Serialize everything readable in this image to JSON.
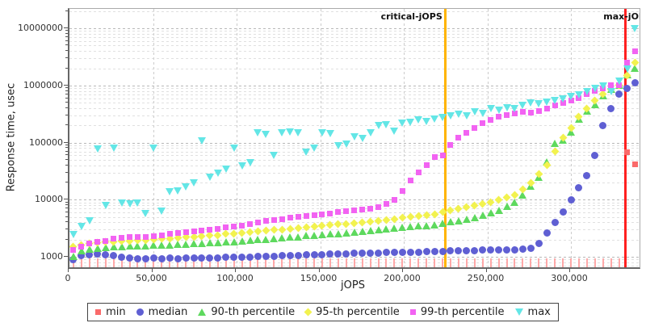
{
  "chart_data": {
    "type": "scatter",
    "title": "",
    "xlabel": "jOPS",
    "ylabel": "Response time, usec",
    "y_axis": {
      "scale": "log",
      "min": 650,
      "max": 22000000,
      "ticks": [
        {
          "value": 1000,
          "label": "1000"
        },
        {
          "value": 10000,
          "label": "10000"
        },
        {
          "value": 100000,
          "label": "100000"
        },
        {
          "value": 1000000,
          "label": "1000000"
        },
        {
          "value": 10000000,
          "label": "10000000"
        }
      ]
    },
    "x_axis": {
      "min": 0,
      "max": 341000,
      "ticks": [
        {
          "value": 0,
          "label": "0"
        },
        {
          "value": 50000,
          "label": "50,000"
        },
        {
          "value": 100000,
          "label": "100,000"
        },
        {
          "value": 150000,
          "label": "150,000"
        },
        {
          "value": 200000,
          "label": "200,000"
        },
        {
          "value": 250000,
          "label": "250,000"
        },
        {
          "value": 300000,
          "label": "300,000"
        }
      ]
    },
    "grid": true,
    "legend_position": "bottom",
    "x": [
      2400,
      7200,
      12000,
      16800,
      21600,
      26400,
      31200,
      36000,
      40800,
      45600,
      50400,
      55200,
      60000,
      64800,
      69600,
      74400,
      79200,
      84000,
      88800,
      93600,
      98400,
      103200,
      108000,
      112800,
      117600,
      122400,
      127200,
      132000,
      136800,
      141600,
      146400,
      151200,
      156000,
      160800,
      165600,
      170400,
      175200,
      180000,
      184800,
      189600,
      194400,
      199200,
      204000,
      208800,
      213600,
      218400,
      223200,
      228000,
      232800,
      237600,
      242400,
      247200,
      252000,
      256800,
      261600,
      266400,
      271200,
      276000,
      280800,
      285600,
      290400,
      295200,
      300000,
      304800,
      309600,
      314400,
      319200,
      324000,
      328800,
      333600,
      338400
    ],
    "series": [
      {
        "name": "min",
        "marker": "stick-square",
        "color": "#fa6a6a",
        "stick_color": "#ffa8a8",
        "values": [
          950,
          950,
          950,
          950,
          950,
          950,
          950,
          950,
          950,
          950,
          950,
          950,
          950,
          950,
          950,
          950,
          950,
          950,
          950,
          950,
          950,
          950,
          950,
          950,
          950,
          950,
          950,
          950,
          950,
          950,
          950,
          950,
          950,
          950,
          950,
          950,
          950,
          950,
          950,
          950,
          950,
          950,
          950,
          950,
          950,
          950,
          950,
          950,
          950,
          950,
          950,
          950,
          950,
          950,
          950,
          950,
          950,
          950,
          950,
          950,
          950,
          950,
          950,
          950,
          950,
          950,
          950,
          950,
          950,
          67000,
          42000
        ]
      },
      {
        "name": "median",
        "marker": "circle",
        "color": "#5f5fd3",
        "values": [
          900,
          1050,
          1100,
          1120,
          1080,
          1050,
          1000,
          960,
          930,
          930,
          940,
          930,
          940,
          930,
          940,
          950,
          940,
          950,
          960,
          970,
          980,
          990,
          1000,
          1010,
          1020,
          1030,
          1040,
          1050,
          1060,
          1070,
          1080,
          1100,
          1110,
          1120,
          1130,
          1140,
          1150,
          1160,
          1170,
          1180,
          1190,
          1200,
          1200,
          1210,
          1220,
          1230,
          1250,
          1260,
          1270,
          1280,
          1290,
          1300,
          1310,
          1320,
          1330,
          1340,
          1350,
          1400,
          1700,
          2600,
          4000,
          6000,
          10000,
          16000,
          26000,
          60000,
          200000,
          400000,
          700000,
          900000,
          1100000
        ]
      },
      {
        "name": "90-th percentile",
        "marker": "triangle-up",
        "color": "#5ed95e",
        "values": [
          1000,
          1250,
          1350,
          1400,
          1450,
          1480,
          1500,
          1520,
          1540,
          1550,
          1560,
          1580,
          1600,
          1620,
          1650,
          1680,
          1700,
          1720,
          1750,
          1780,
          1800,
          1850,
          1900,
          1950,
          2000,
          2050,
          2100,
          2150,
          2200,
          2300,
          2350,
          2400,
          2450,
          2500,
          2600,
          2650,
          2700,
          2800,
          2900,
          3000,
          3100,
          3200,
          3300,
          3400,
          3500,
          3600,
          3800,
          4000,
          4200,
          4500,
          4800,
          5200,
          5800,
          6500,
          7500,
          9000,
          12000,
          17000,
          24000,
          45000,
          95000,
          110000,
          150000,
          250000,
          350000,
          450000,
          650000,
          850000,
          1000000,
          1500000,
          2000000
        ]
      },
      {
        "name": "95-th percentile",
        "marker": "diamond",
        "color": "#f2f24f",
        "values": [
          1500,
          1600,
          1700,
          1750,
          1800,
          1850,
          1880,
          1900,
          1930,
          1950,
          2000,
          2050,
          2100,
          2150,
          2200,
          2250,
          2300,
          2350,
          2400,
          2500,
          2550,
          2600,
          2700,
          2750,
          2850,
          2950,
          3000,
          3100,
          3200,
          3300,
          3400,
          3500,
          3600,
          3700,
          3800,
          3900,
          4000,
          4100,
          4250,
          4400,
          4600,
          4800,
          5000,
          5200,
          5400,
          5500,
          6000,
          6500,
          7000,
          7500,
          8000,
          8500,
          9000,
          10000,
          11000,
          12000,
          15000,
          20000,
          28000,
          40000,
          70000,
          120000,
          180000,
          280000,
          400000,
          550000,
          700000,
          850000,
          1000000,
          1500000,
          2500000
        ]
      },
      {
        "name": "99-th percentile",
        "marker": "square",
        "color": "#f263f2",
        "values": [
          1300,
          1500,
          1700,
          1800,
          1900,
          2100,
          2150,
          2200,
          2250,
          2250,
          2300,
          2400,
          2500,
          2600,
          2700,
          2800,
          2900,
          3000,
          3100,
          3300,
          3400,
          3500,
          3700,
          4000,
          4200,
          4400,
          4600,
          4800,
          5000,
          5200,
          5400,
          5600,
          5800,
          6000,
          6200,
          6400,
          6700,
          7000,
          7500,
          8500,
          10000,
          14000,
          22000,
          30000,
          40000,
          55000,
          60000,
          90000,
          120000,
          150000,
          180000,
          220000,
          250000,
          280000,
          300000,
          320000,
          350000,
          330000,
          360000,
          400000,
          450000,
          500000,
          550000,
          600000,
          700000,
          800000,
          900000,
          1000000,
          1000000,
          2500000,
          4000000
        ]
      },
      {
        "name": "max",
        "marker": "triangle-down",
        "color": "#63e6e6",
        "values": [
          2500,
          3500,
          4300,
          78000,
          8000,
          80000,
          9000,
          8500,
          8800,
          5800,
          80000,
          6400,
          14000,
          14500,
          17000,
          20000,
          110000,
          25000,
          30000,
          35000,
          80000,
          40000,
          45000,
          150000,
          140000,
          60000,
          150000,
          155000,
          150000,
          70000,
          80000,
          150000,
          145000,
          90000,
          95000,
          130000,
          120000,
          150000,
          200000,
          210000,
          160000,
          220000,
          230000,
          250000,
          240000,
          260000,
          280000,
          300000,
          320000,
          300000,
          350000,
          330000,
          400000,
          380000,
          420000,
          400000,
          450000,
          500000,
          480000,
          520000,
          550000,
          600000,
          650000,
          700000,
          800000,
          900000,
          1000000,
          800000,
          1200000,
          2000000,
          10000000
        ]
      }
    ],
    "annotations": [
      {
        "label": "critical-jOPS",
        "x": 225000,
        "color": "#ffb400",
        "label_align": "right"
      },
      {
        "label": "max-jOPS",
        "x": 332500,
        "color": "#ff2020",
        "label_align": "center"
      }
    ]
  }
}
